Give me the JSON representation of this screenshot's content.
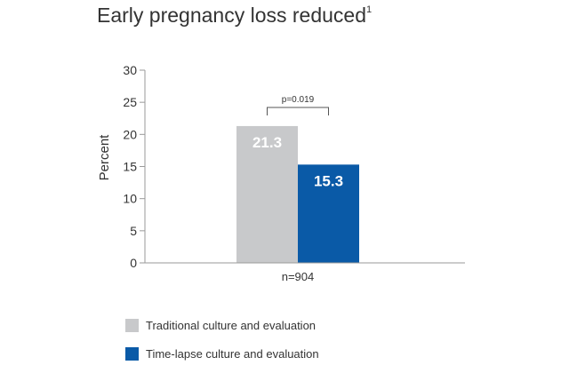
{
  "title": "Early pregnancy loss reduced",
  "title_superscript": "1",
  "chart_data": {
    "type": "bar",
    "title": "Early pregnancy loss reduced",
    "ylabel": "Percent",
    "ylim": [
      0,
      30
    ],
    "yticks": [
      0,
      5,
      10,
      15,
      20,
      25,
      30
    ],
    "categories": [
      "n=904"
    ],
    "series": [
      {
        "name": "Traditional culture and evaluation",
        "values": [
          21.3
        ],
        "color": "#c8c9cb",
        "label_color": "#ffffff"
      },
      {
        "name": "Time-lapse culture and evaluation",
        "values": [
          15.3
        ],
        "color": "#0a5aa7",
        "label_color": "#ffffff"
      }
    ],
    "annotation": "p=0.019",
    "grid": false,
    "legend": "bottom-left"
  }
}
